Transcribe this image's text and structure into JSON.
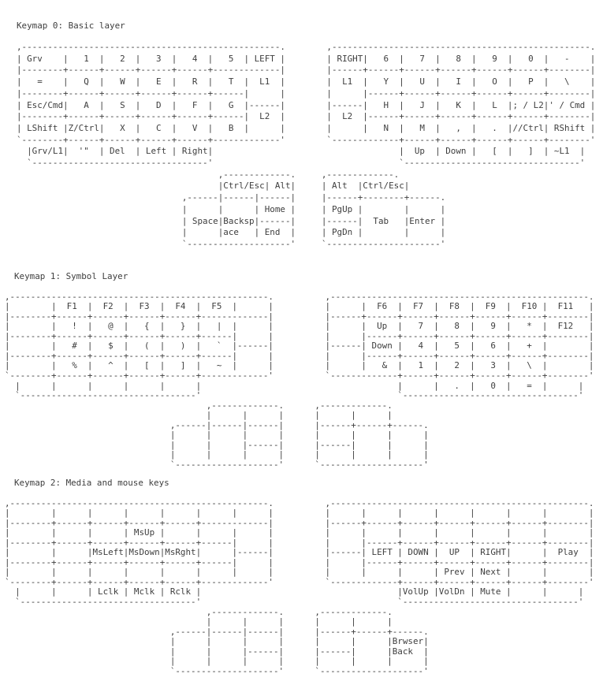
{
  "page": {
    "background": "#ffffff",
    "text_color": "#3e3e3e"
  },
  "sections": [
    {
      "title": "Keymap 0: Basic layer",
      "art_lines": [
        ",--------------------------------------------------.        ,--------------------------------------------------.",
        "| Grv    |   1  |   2  |   3  |   4  |   5  | LEFT |        | RIGHT|   6  |   7  |   8  |   9  |   0  |   -    |",
        "|--------+------+------+------+------+-------------|        |------+------+------+------+------+------+--------|",
        "|   =    |   Q  |   W  |   E  |   R  |   T  |  L1  |        |  L1  |   Y  |   U  |   I  |   O  |   P  |   \\    |",
        "|--------+------+------+------+------+------|      |        |      |------+------+------+------+------+--------|",
        "| Esc/Cmd|   A  |   S  |   D  |   F  |   G  |------|        |------|   H  |   J  |   K  |   L  |; / L2|' / Cmd |",
        "|--------+------+------+------+------+------|  L2  |        |  L2  |------+------+------+------+------+--------|",
        "| LShift |Z/Ctrl|   X  |   C  |   V  |   B  |      |        |      |   N  |   M  |   ,  |   .  |//Ctrl| RShift |",
        "`--------+------+------+------+------+-------------'        `-------------+------+------+------+------+--------'",
        "  |Grv/L1|  '\"  | Del  | Left | Right|                                    |  Up  | Down |   [  |   ]  | ~L1  |",
        "  `----------------------------------'                                    `----------------------------------'",
        "                                       ,-------------.     ,-------------.",
        "                                       |Ctrl/Esc| Alt|     | Alt  |Ctrl/Esc|",
        "                                ,------|------|------|     |------+--------+------.",
        "                                |      |      | Home |     | PgUp |        |      |",
        "                                | Space|Backsp|------|     |------|  Tab   |Enter |",
        "                                |      |ace   | End  |     | PgDn |        |      |",
        "                                `--------------------'     `----------------------'"
      ]
    },
    {
      "title": "Keymap 1: Symbol Layer",
      "art_lines": [
        ",--------------------------------------------------.          ,--------------------------------------------------.",
        "|        |  F1  |  F2  |  F3  |  F4  |  F5  |      |          |      |  F6  |  F7  |  F8  |  F9  |  F10 |  F11   |",
        "|--------+------+------+------+------+-------------|          |------+------+------+------+------+------+--------|",
        "|        |   !  |   @  |   {  |   }  |   |  |      |          |      |  Up  |   7  |   8  |   9  |   *  |  F12   |",
        "|--------+------+------+------+------+------|      |          |      |------+------+------+------+------+--------|",
        "|        |   #  |   $  |   (  |   )  |   `  |------|          |------| Down |   4  |   5  |   6  |   +  |        |",
        "|--------+------+------+------+------+------|      |          |      |------+------+------+------+------+--------|",
        "|        |   %  |   ^  |   [  |   ]  |   ~  |      |          |      |   &  |   1  |   2  |   3  |   \\  |        |",
        "`--------+------+------+------+------+-------------'          `-------------+------+------+------+------+--------'",
        "  |      |      |      |      |      |                                      |      |   .  |   0  |   =  |      |",
        "  `----------------------------------'                                      `----------------------------------'",
        "                                       ,-------------.      ,-------------.",
        "                                       |      |      |      |      |      |",
        "                                ,------|------|------|      |------+------+------.",
        "                                |      |      |      |      |      |      |      |",
        "                                |      |      |------|      |------|      |      |",
        "                                |      |      |      |      |      |      |      |",
        "                                `--------------------'      `--------------------'"
      ]
    },
    {
      "title": "Keymap 2: Media and mouse keys",
      "art_lines": [
        ",--------------------------------------------------.          ,--------------------------------------------------.",
        "|        |      |      |      |      |      |      |          |      |      |      |      |      |      |        |",
        "|--------+------+------+------+------+-------------|          |------+------+------+------+------+------+--------|",
        "|        |      |      | MsUp |      |      |      |          |      |      |      |      |      |      |        |",
        "|--------+------+------+------+------+------|      |          |      |------+------+------+------+------+--------|",
        "|        |      |MsLeft|MsDown|MsRght|      |------|          |------| LEFT | DOWN |  UP  | RIGHT|      |  Play  |",
        "|--------+------+------+------+------+------|      |          |      |------+------+------+------+------+--------|",
        "|        |      |      |      |      |      |      |          |      |      |      | Prev | Next |      |        |",
        "`--------+------+------+------+------+-------------'          `-------------+------+------+------+------+--------'",
        "  |      |      | Lclk | Mclk | Rclk |                                      |VolUp |VolDn | Mute |      |      |",
        "  `----------------------------------'                                      `----------------------------------'",
        "                                       ,-------------.      ,-------------.",
        "                                       |      |      |      |      |      |",
        "                                ,------|------|------|      |------+------+------.",
        "                                |      |      |      |      |      |      |Brwser|",
        "                                |      |      |------|      |------|      |Back  |",
        "                                |      |      |      |      |      |      |      |",
        "                                `--------------------'      `--------------------'"
      ]
    }
  ]
}
